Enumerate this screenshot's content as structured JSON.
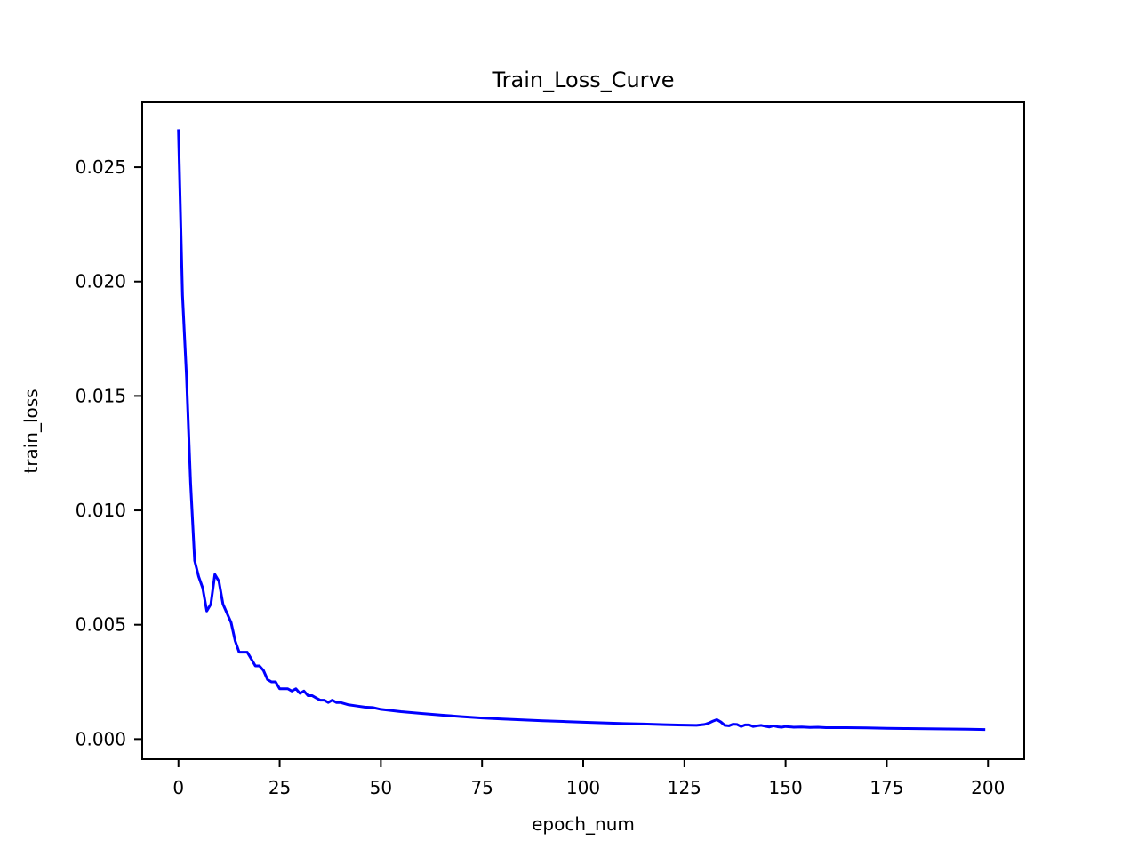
{
  "chart_data": {
    "type": "line",
    "title": "Train_Loss_Curve",
    "xlabel": "epoch_num",
    "ylabel": "train_loss",
    "xlim": [
      -8.95,
      208.95
    ],
    "ylim": [
      -0.00088,
      0.02784
    ],
    "x_ticks": [
      0,
      25,
      50,
      75,
      100,
      125,
      150,
      175,
      200
    ],
    "x_tick_labels": [
      "0",
      "25",
      "50",
      "75",
      "100",
      "125",
      "150",
      "175",
      "200"
    ],
    "y_ticks": [
      0.0,
      0.005,
      0.01,
      0.015,
      0.02,
      0.025
    ],
    "y_tick_labels": [
      "0.000",
      "0.005",
      "0.010",
      "0.015",
      "0.020",
      "0.025"
    ],
    "grid": false,
    "legend": "none",
    "series": [
      {
        "color": "#0000ff",
        "x": [
          0,
          1,
          2,
          3,
          4,
          5,
          6,
          7,
          8,
          9,
          10,
          11,
          12,
          13,
          14,
          15,
          16,
          17,
          18,
          19,
          20,
          21,
          22,
          23,
          24,
          25,
          26,
          27,
          28,
          29,
          30,
          31,
          32,
          33,
          34,
          35,
          36,
          37,
          38,
          39,
          40,
          42,
          44,
          46,
          48,
          50,
          55,
          60,
          65,
          70,
          75,
          80,
          85,
          90,
          95,
          100,
          105,
          110,
          115,
          120,
          125,
          128,
          130,
          131,
          132,
          133,
          134,
          135,
          136,
          137,
          138,
          139,
          140,
          141,
          142,
          143,
          144,
          145,
          146,
          147,
          148,
          149,
          150,
          152,
          154,
          156,
          158,
          160,
          165,
          170,
          175,
          180,
          185,
          190,
          195,
          199
        ],
        "y": [
          0.0266,
          0.0194,
          0.0158,
          0.0112,
          0.0078,
          0.0071,
          0.0066,
          0.0056,
          0.0059,
          0.0072,
          0.0069,
          0.0059,
          0.0055,
          0.0051,
          0.0043,
          0.0038,
          0.0038,
          0.0038,
          0.0035,
          0.0032,
          0.0032,
          0.003,
          0.0026,
          0.0025,
          0.0025,
          0.0022,
          0.0022,
          0.0022,
          0.0021,
          0.0022,
          0.002,
          0.0021,
          0.0019,
          0.0019,
          0.0018,
          0.0017,
          0.0017,
          0.0016,
          0.0017,
          0.0016,
          0.0016,
          0.0015,
          0.00145,
          0.0014,
          0.00138,
          0.0013,
          0.0012,
          0.00112,
          0.00105,
          0.00098,
          0.00092,
          0.00088,
          0.00084,
          0.0008,
          0.00077,
          0.00074,
          0.00071,
          0.00068,
          0.00066,
          0.00063,
          0.00061,
          0.0006,
          0.00064,
          0.0007,
          0.00078,
          0.00085,
          0.00075,
          0.0006,
          0.00058,
          0.00065,
          0.00064,
          0.00055,
          0.00062,
          0.00062,
          0.00055,
          0.00058,
          0.0006,
          0.00056,
          0.00053,
          0.00058,
          0.00054,
          0.00052,
          0.00055,
          0.00052,
          0.00053,
          0.00051,
          0.00052,
          0.0005,
          0.0005,
          0.00049,
          0.00047,
          0.00046,
          0.00045,
          0.00044,
          0.00043,
          0.00042
        ]
      }
    ]
  }
}
